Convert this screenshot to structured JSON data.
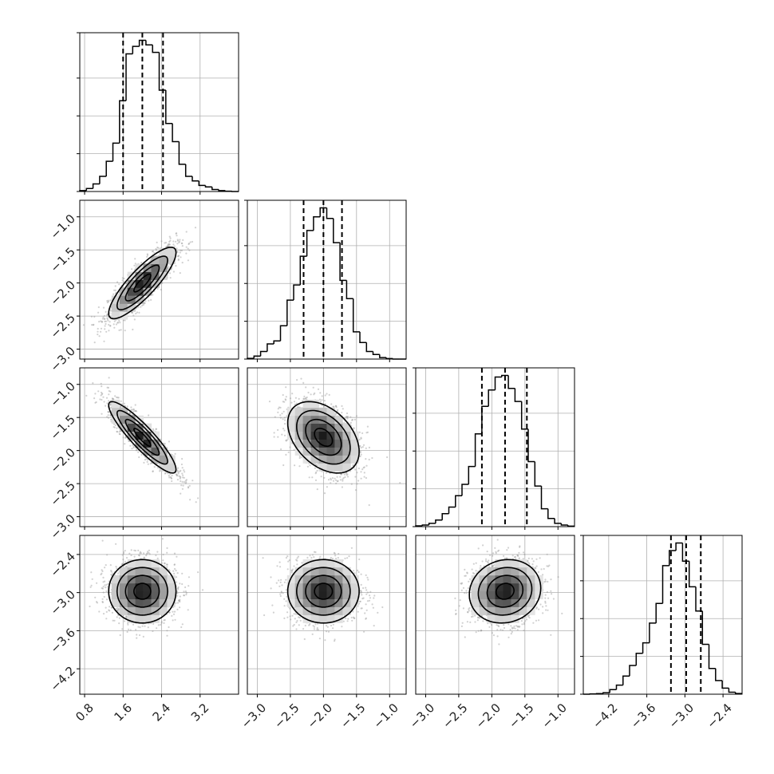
{
  "chart_data": {
    "type": "corner",
    "n_params": 4,
    "grid": true,
    "colors": {
      "line": "#000000",
      "grid": "#b0b0b0",
      "frame": "#000000"
    },
    "params": [
      {
        "range": [
          0.7,
          4.0
        ],
        "ticks": [
          0.8,
          1.6,
          2.4,
          3.2
        ],
        "tick_labels": [
          "0.8",
          "1.6",
          "2.4",
          "3.2"
        ],
        "mean": 2.0,
        "sigma": 0.35,
        "quantiles": [
          1.6,
          2.0,
          2.43
        ],
        "hist": [
          0.006,
          0.02,
          0.05,
          0.1,
          0.2,
          0.32,
          0.6,
          0.91,
          0.96,
          1.0,
          0.97,
          0.92,
          0.67,
          0.45,
          0.33,
          0.18,
          0.1,
          0.07,
          0.04,
          0.03,
          0.013,
          0.006,
          0.002,
          0.0
        ]
      },
      {
        "range": [
          -3.15,
          -0.75
        ],
        "ticks": [
          -3.0,
          -2.5,
          -2.0,
          -1.5,
          -1.0
        ],
        "tick_labels": [
          "−3.0",
          "−2.5",
          "−2.0",
          "−1.5",
          "−1.0"
        ],
        "mean": -2.0,
        "sigma": 0.27,
        "quantiles": [
          -2.3,
          -2.0,
          -1.72
        ],
        "hist": [
          0.005,
          0.02,
          0.05,
          0.1,
          0.12,
          0.22,
          0.39,
          0.49,
          0.68,
          0.85,
          0.94,
          1.0,
          0.93,
          0.77,
          0.52,
          0.4,
          0.18,
          0.11,
          0.05,
          0.03,
          0.01,
          0.003,
          0.0,
          0.0
        ]
      },
      {
        "range": [
          -3.15,
          -0.75
        ],
        "ticks": [
          -3.0,
          -2.5,
          -2.0,
          -1.5,
          -1.0
        ],
        "tick_labels": [
          "−3.0",
          "−2.5",
          "−2.0",
          "−1.5",
          "−1.0"
        ],
        "mean": -1.8,
        "sigma": 0.27,
        "quantiles": [
          -2.15,
          -1.8,
          -1.47
        ],
        "hist": [
          0.005,
          0.01,
          0.02,
          0.04,
          0.08,
          0.12,
          0.19,
          0.26,
          0.37,
          0.57,
          0.74,
          0.84,
          0.92,
          0.93,
          0.85,
          0.77,
          0.6,
          0.4,
          0.25,
          0.11,
          0.05,
          0.02,
          0.01,
          0.003
        ]
      },
      {
        "range": [
          -4.6,
          -2.1
        ],
        "ticks": [
          -4.2,
          -3.6,
          -3.0,
          -2.4
        ],
        "tick_labels": [
          "−4.2",
          "−3.6",
          "−3.0",
          "−2.4"
        ],
        "mean": -2.98,
        "sigma": 0.25,
        "quantiles": [
          -3.22,
          -2.98,
          -2.75
        ],
        "hist": [
          0.0,
          0.002,
          0.004,
          0.01,
          0.03,
          0.06,
          0.12,
          0.19,
          0.27,
          0.34,
          0.47,
          0.6,
          0.85,
          0.95,
          1.0,
          0.88,
          0.71,
          0.55,
          0.33,
          0.17,
          0.09,
          0.04,
          0.013,
          0.005
        ]
      }
    ],
    "correlations": {
      "1,0": 0.85,
      "2,0": -0.9,
      "2,1": -0.4,
      "3,0": 0.0,
      "3,1": 0.0,
      "3,2": 0.1
    },
    "contour_levels_sigma": [
      0.5,
      1.0,
      1.5,
      2.0
    ],
    "samples_per_panel": 1600
  }
}
